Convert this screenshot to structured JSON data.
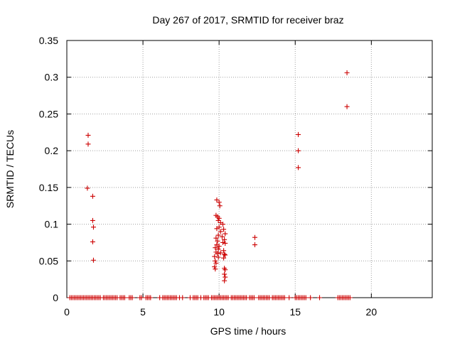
{
  "chart_data": {
    "type": "scatter",
    "title": "Day 267 of 2017, SRMTID for receiver braz",
    "xlabel": "GPS time / hours",
    "ylabel": "SRMTID / TECUs",
    "xlim": [
      0,
      24
    ],
    "ylim": [
      0,
      0.35
    ],
    "grid": true,
    "marker": "+",
    "x_ticks": [
      0,
      5,
      10,
      15,
      20
    ],
    "x_tick_labels": [
      "0",
      "5",
      "10",
      "15",
      "20"
    ],
    "y_ticks": [
      0,
      0.05,
      0.1,
      0.15,
      0.2,
      0.25,
      0.3,
      0.35
    ],
    "y_tick_labels": [
      "0",
      "0.05",
      "0.1",
      "0.15",
      "0.2",
      "0.25",
      "0.3",
      "0.35"
    ],
    "series": [
      {
        "name": "SRMTID",
        "color": "#cc0000",
        "points": [
          [
            1.4,
            0.221
          ],
          [
            1.4,
            0.209
          ],
          [
            1.35,
            0.149
          ],
          [
            1.7,
            0.138
          ],
          [
            1.7,
            0.105
          ],
          [
            1.75,
            0.096
          ],
          [
            1.7,
            0.076
          ],
          [
            1.75,
            0.051
          ],
          [
            9.85,
            0.133
          ],
          [
            10.0,
            0.13
          ],
          [
            10.05,
            0.125
          ],
          [
            9.8,
            0.112
          ],
          [
            9.9,
            0.11
          ],
          [
            10.0,
            0.108
          ],
          [
            9.95,
            0.105
          ],
          [
            10.1,
            0.102
          ],
          [
            10.25,
            0.1
          ],
          [
            10.0,
            0.096
          ],
          [
            9.85,
            0.094
          ],
          [
            10.3,
            0.093
          ],
          [
            10.1,
            0.09
          ],
          [
            10.4,
            0.087
          ],
          [
            9.95,
            0.085
          ],
          [
            10.2,
            0.083
          ],
          [
            9.8,
            0.081
          ],
          [
            10.35,
            0.079
          ],
          [
            9.9,
            0.077
          ],
          [
            10.25,
            0.075
          ],
          [
            10.4,
            0.074
          ],
          [
            9.85,
            0.072
          ],
          [
            10.0,
            0.07
          ],
          [
            9.75,
            0.068
          ],
          [
            9.95,
            0.066
          ],
          [
            10.3,
            0.064
          ],
          [
            9.8,
            0.062
          ],
          [
            10.1,
            0.061
          ],
          [
            9.9,
            0.06
          ],
          [
            10.35,
            0.059
          ],
          [
            10.4,
            0.058
          ],
          [
            9.7,
            0.056
          ],
          [
            9.95,
            0.055
          ],
          [
            10.3,
            0.054
          ],
          [
            9.75,
            0.05
          ],
          [
            9.8,
            0.047
          ],
          [
            9.7,
            0.042
          ],
          [
            9.75,
            0.039
          ],
          [
            10.35,
            0.04
          ],
          [
            10.4,
            0.038
          ],
          [
            10.35,
            0.032
          ],
          [
            10.4,
            0.028
          ],
          [
            10.35,
            0.023
          ],
          [
            12.35,
            0.082
          ],
          [
            12.35,
            0.072
          ],
          [
            15.2,
            0.222
          ],
          [
            15.2,
            0.2
          ],
          [
            15.2,
            0.177
          ],
          [
            18.4,
            0.306
          ],
          [
            18.4,
            0.26
          ]
        ],
        "zero_points_x": [
          0.2,
          0.3,
          0.4,
          0.5,
          0.6,
          0.7,
          0.8,
          0.9,
          1.0,
          1.1,
          1.2,
          1.3,
          1.4,
          1.5,
          1.6,
          1.7,
          1.8,
          1.9,
          2.0,
          2.1,
          2.2,
          2.4,
          2.5,
          2.6,
          2.7,
          2.8,
          2.9,
          3.0,
          3.1,
          3.2,
          3.3,
          3.5,
          3.6,
          3.7,
          3.8,
          4.1,
          4.2,
          4.3,
          4.8,
          4.9,
          5.2,
          5.3,
          5.4,
          5.5,
          6.1,
          6.3,
          6.4,
          6.5,
          6.6,
          6.7,
          6.8,
          6.9,
          7.0,
          7.1,
          7.2,
          7.4,
          7.6,
          8.1,
          8.3,
          8.4,
          8.5,
          8.6,
          8.8,
          9.0,
          9.1,
          9.2,
          9.3,
          9.5,
          9.6,
          9.7,
          9.8,
          9.9,
          10.0,
          10.1,
          10.2,
          10.3,
          10.4,
          10.5,
          10.6,
          10.8,
          10.9,
          11.0,
          11.1,
          11.2,
          11.3,
          11.4,
          11.5,
          11.6,
          11.7,
          11.8,
          12.0,
          12.1,
          12.2,
          12.3,
          12.6,
          12.7,
          12.8,
          12.9,
          13.0,
          13.1,
          13.2,
          13.3,
          13.5,
          13.6,
          13.7,
          13.8,
          13.9,
          14.0,
          14.1,
          14.2,
          14.3,
          14.6,
          15.0,
          15.1,
          15.2,
          15.3,
          15.4,
          15.5,
          15.6,
          15.7,
          16.0,
          16.6,
          17.8,
          17.9,
          18.0,
          18.1,
          18.2,
          18.3,
          18.4,
          18.5,
          18.6
        ]
      }
    ]
  }
}
